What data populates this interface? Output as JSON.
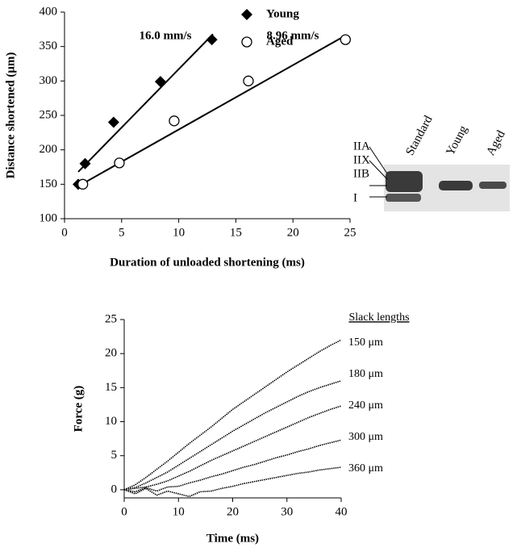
{
  "chart_data": [
    {
      "type": "scatter",
      "xlabel": "Duration of unloaded shortening (ms)",
      "ylabel": "Distance shortened (μm)",
      "xlim": [
        0,
        25
      ],
      "xticks": [
        0,
        5,
        10,
        15,
        20,
        25
      ],
      "ylim": [
        100,
        400
      ],
      "yticks": [
        100,
        150,
        200,
        250,
        300,
        350,
        400
      ],
      "annotations": [
        "16.0 mm/s",
        "8.96 mm/s"
      ],
      "series": [
        {
          "name": "Young",
          "marker": "diamond",
          "color": "#000000",
          "x": [
            1.2,
            1.8,
            4.3,
            8.4,
            12.9
          ],
          "values": [
            150,
            180,
            240,
            299,
            360
          ],
          "fit": {
            "x": [
              1.2,
              13
            ],
            "y": [
              168,
              368
            ]
          }
        },
        {
          "name": "Aged",
          "marker": "circle",
          "color": "#000000",
          "x": [
            1.6,
            4.8,
            9.6,
            16.1,
            24.6
          ],
          "values": [
            150,
            181,
            242,
            300,
            360
          ],
          "fit": {
            "x": [
              1.5,
              24.6
            ],
            "y": [
              150,
              366
            ]
          }
        }
      ]
    },
    {
      "type": "line",
      "xlabel": "Time (ms)",
      "ylabel": "Force (g)",
      "legend_title": "Slack lengths",
      "xlim": [
        0,
        40
      ],
      "xticks": [
        0,
        10,
        20,
        30,
        40
      ],
      "ylim": [
        -1.2,
        25
      ],
      "yticks": [
        0,
        5,
        10,
        15,
        20,
        25
      ],
      "x": [
        0,
        2,
        4,
        6,
        8,
        10,
        12,
        14,
        16,
        18,
        20,
        22,
        24,
        26,
        28,
        30,
        32,
        34,
        36,
        38,
        40
      ],
      "series": [
        {
          "name": "150 μm",
          "color": "#000000",
          "values": [
            0,
            0.7,
            1.8,
            3,
            4.2,
            5.5,
            6.8,
            8,
            9.2,
            10.5,
            11.8,
            12.9,
            14,
            15.1,
            16.2,
            17.3,
            18.3,
            19.3,
            20.3,
            21.2,
            22
          ]
        },
        {
          "name": "180 μm",
          "color": "#000000",
          "values": [
            0,
            0.3,
            1,
            1.8,
            2.6,
            3.6,
            4.6,
            5.6,
            6.6,
            7.6,
            8.6,
            9.5,
            10.4,
            11.3,
            12.1,
            12.9,
            13.7,
            14.4,
            15,
            15.5,
            16
          ]
        },
        {
          "name": "240 μm",
          "color": "#000000",
          "values": [
            0,
            0.2,
            0.4,
            0.8,
            1.3,
            2,
            2.7,
            3.5,
            4.3,
            5,
            5.7,
            6.4,
            7.1,
            7.8,
            8.5,
            9.2,
            9.9,
            10.6,
            11.2,
            11.8,
            12.3
          ]
        },
        {
          "name": "300 μm",
          "color": "#000000",
          "values": [
            0,
            -0.3,
            0.3,
            -0.2,
            0.4,
            0.5,
            1,
            1.4,
            1.9,
            2.3,
            2.8,
            3.3,
            3.7,
            4.2,
            4.7,
            5.1,
            5.6,
            6,
            6.5,
            6.9,
            7.3
          ]
        },
        {
          "name": "360 μm",
          "color": "#000000",
          "values": [
            0,
            -0.6,
            0.2,
            -0.8,
            -0.2,
            -0.6,
            -1,
            -0.3,
            -0.2,
            0.2,
            0.5,
            0.9,
            1.2,
            1.5,
            1.8,
            2.1,
            2.4,
            2.6,
            2.9,
            3.1,
            3.3
          ]
        }
      ]
    }
  ],
  "gel": {
    "lanes": [
      "Standard",
      "Young",
      "Aged"
    ],
    "bands": [
      "IIA",
      "IIX",
      "IIB",
      "I"
    ]
  }
}
